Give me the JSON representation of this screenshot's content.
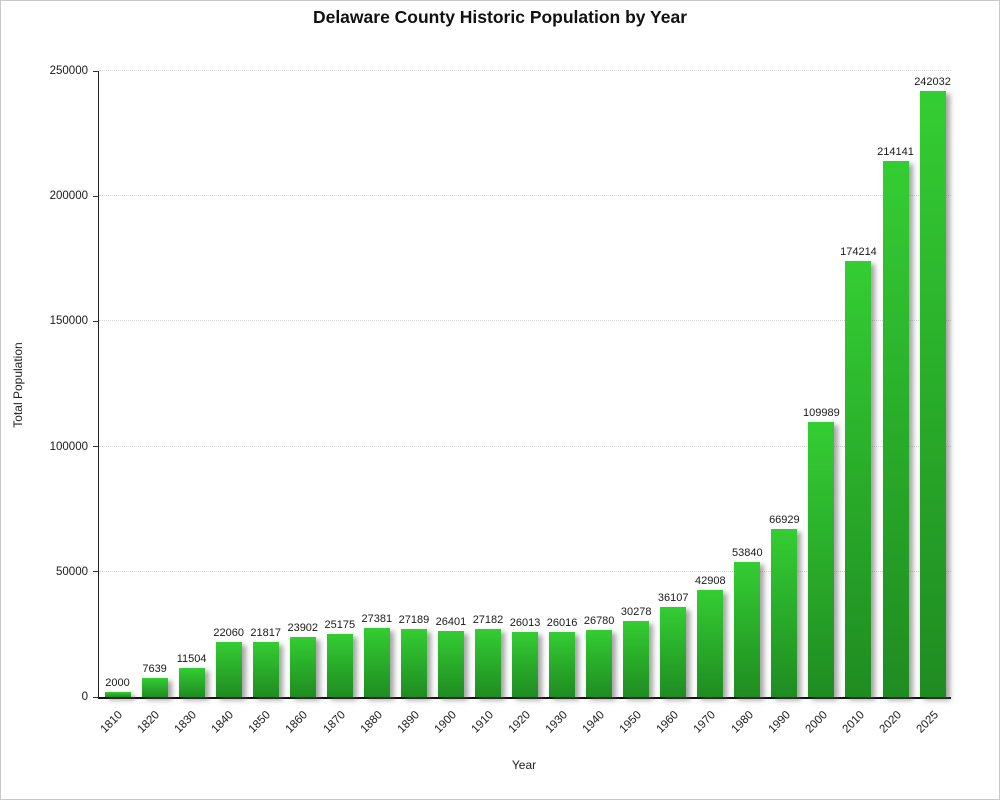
{
  "chart_data": {
    "type": "bar",
    "title": "Delaware County Historic Population by Year",
    "xlabel": "Year",
    "ylabel": "Total Population",
    "categories": [
      "1810",
      "1820",
      "1830",
      "1840",
      "1850",
      "1860",
      "1870",
      "1880",
      "1890",
      "1900",
      "1910",
      "1920",
      "1930",
      "1940",
      "1950",
      "1960",
      "1970",
      "1980",
      "1990",
      "2000",
      "2010",
      "2020",
      "2025"
    ],
    "values": [
      2000,
      7639,
      11504,
      22060,
      21817,
      23902,
      25175,
      27381,
      27189,
      26401,
      27182,
      26013,
      26016,
      26780,
      30278,
      36107,
      42908,
      53840,
      66929,
      109989,
      174214,
      214141,
      242032
    ],
    "ylim": [
      0,
      250000
    ],
    "yticks": [
      0,
      50000,
      100000,
      150000,
      200000,
      250000
    ],
    "grid": "horizontal-dotted",
    "legend": "none",
    "value_labels_shown": true,
    "x_tick_rotation_deg": -45,
    "colors": {
      "bar_gradient_top": "#34cd33",
      "bar_gradient_bottom": "#1f8c21",
      "bar_shadow": "#5a5a5a",
      "gridline": "#d4d4d4",
      "axis_line": "#222222",
      "text": "#1a1a1a",
      "background": "#ffffff",
      "page_border": "#c9c9c9"
    }
  }
}
